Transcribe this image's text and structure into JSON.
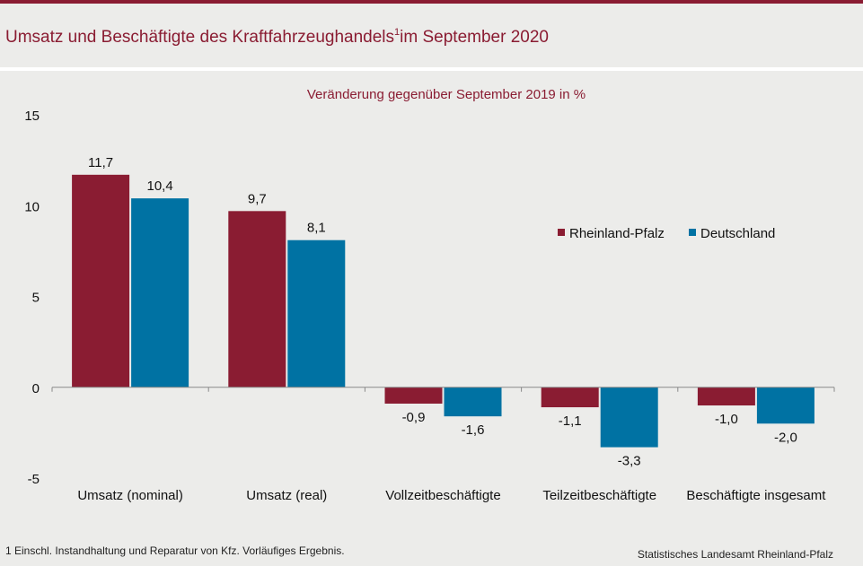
{
  "header": {
    "title": "Umsatz und Beschäftigte des Kraftfahrzeughandels",
    "title_sup": "1",
    "title_suffix": "im September 2020"
  },
  "colors": {
    "brand": "#8a1c32",
    "rheinland_pfalz": "#8a1c32",
    "deutschland": "#0072a3"
  },
  "chart_data": {
    "type": "bar",
    "subtitle": "Veränderung gegenüber September 2019 in %",
    "categories": [
      "Umsatz (nominal)",
      "Umsatz (real)",
      "Vollzeitbeschäftigte",
      "Teilzeitbeschäftigte",
      "Beschäftigte insgesamt"
    ],
    "series": [
      {
        "name": "Rheinland-Pfalz",
        "values": [
          11.7,
          9.7,
          -0.9,
          -1.1,
          -1.0
        ],
        "labels": [
          "11,7",
          "9,7",
          "-0,9",
          "-1,1",
          "-1,0"
        ]
      },
      {
        "name": "Deutschland",
        "values": [
          10.4,
          8.1,
          -1.6,
          -3.3,
          -2.0
        ],
        "labels": [
          "10,4",
          "8,1",
          "-1,6",
          "-3,3",
          "-2,0"
        ]
      }
    ],
    "yticks": [
      15,
      10,
      5,
      0,
      -5
    ],
    "ytick_labels": [
      "15",
      "10",
      "5",
      "0",
      "-5"
    ],
    "ylim": [
      -5,
      15
    ],
    "legend_position": "right",
    "grid": false
  },
  "footer": {
    "footnote": "1 Einschl. Instandhaltung und Reparatur von Kfz. Vorläufiges Ergebnis.",
    "source": "Statistisches Landesamt Rheinland-Pfalz"
  }
}
